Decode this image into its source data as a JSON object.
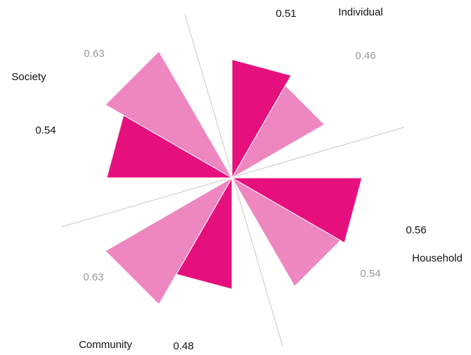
{
  "chart_data": {
    "type": "radial_bar",
    "categories": [
      "Individual",
      "Household",
      "Community",
      "Society"
    ],
    "series": [
      {
        "color": "#e5107d",
        "values": [
          0.51,
          0.56,
          0.48,
          0.54
        ]
      },
      {
        "color": "#ee86bf",
        "values": [
          0.46,
          0.54,
          0.63,
          0.63
        ]
      }
    ]
  }
}
